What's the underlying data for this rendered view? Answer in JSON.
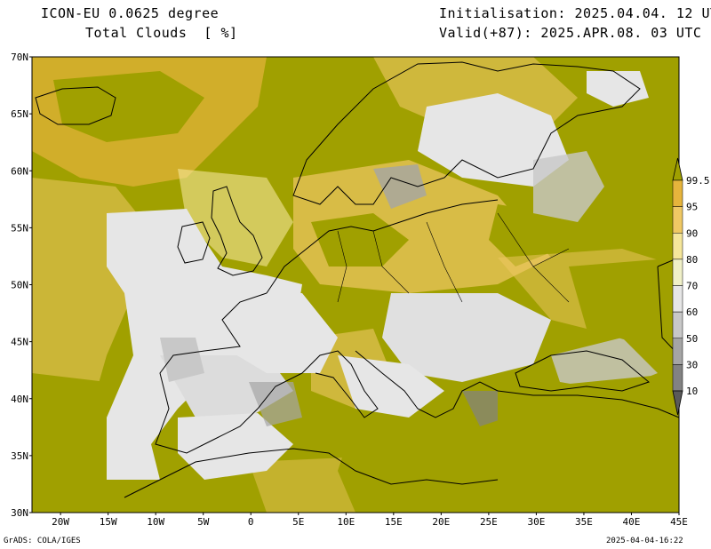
{
  "header": {
    "title": "ICON-EU 0.0625 degree",
    "variable": "Total Clouds  [ %]",
    "init": "Initialisation: 2025.04.04. 12 UTC",
    "valid": "Valid(+87): 2025.APR.08. 03 UTC"
  },
  "footer": {
    "left": "GrADS: COLA/IGES",
    "right": "2025-04-04-16:22"
  },
  "map": {
    "lat_labels": [
      "70N",
      "65N",
      "60N",
      "55N",
      "50N",
      "45N",
      "40N",
      "35N",
      "30N"
    ],
    "lon_labels": [
      "20W",
      "15W",
      "10W",
      "5W",
      "0",
      "5E",
      "10E",
      "15E",
      "20E",
      "25E",
      "30E",
      "35E",
      "40E",
      "45E"
    ],
    "lat_range": [
      30,
      70
    ],
    "lon_range": [
      -23,
      45
    ]
  },
  "colorbar": {
    "levels": [
      "99.5",
      "95",
      "90",
      "80",
      "70",
      "60",
      "50",
      "30",
      "10"
    ],
    "colors": [
      "#a0a000",
      "#e6b43c",
      "#efc864",
      "#f5e69a",
      "#f0f0c8",
      "#e6e6e6",
      "#c8c8c8",
      "#a5a5a5",
      "#828282",
      "#5a5a5a"
    ]
  },
  "palette": {
    "sea_overcast": "#a0a000",
    "clear": "#e6e6e6",
    "frame": "#000000"
  }
}
